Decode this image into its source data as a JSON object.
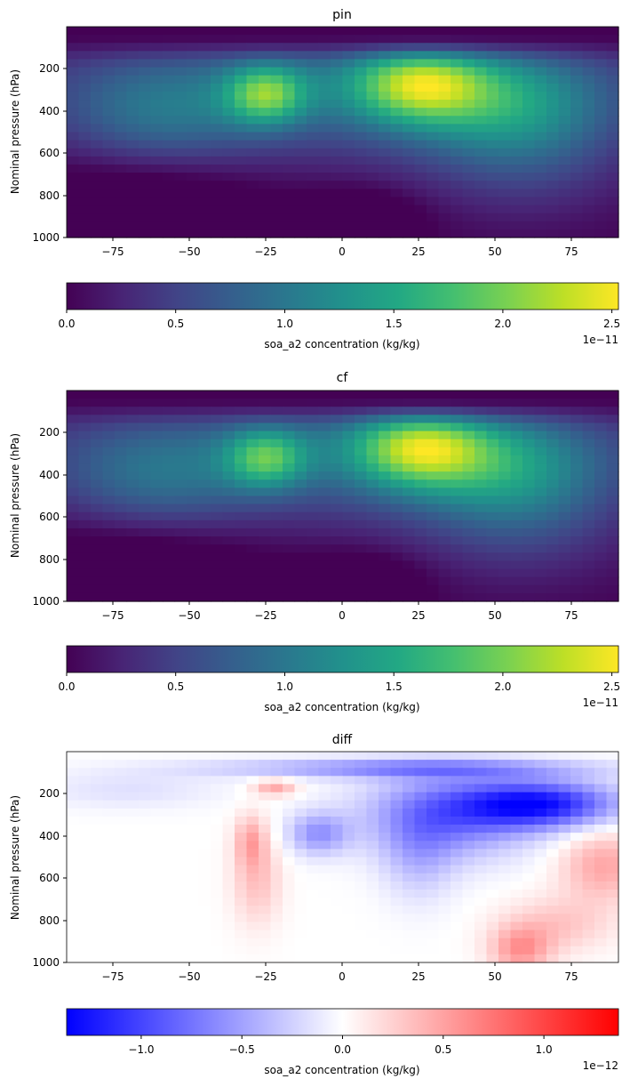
{
  "chart_data": [
    {
      "type": "heatmap",
      "title": "pin",
      "xlabel": "",
      "ylabel": "Nominal pressure (hPa)",
      "xlim": [
        -90,
        90
      ],
      "ylim": [
        1000,
        0
      ],
      "x_ticks": [
        "−75",
        "−50",
        "−25",
        "0",
        "25",
        "50",
        "75"
      ],
      "y_ticks": [
        "200",
        "400",
        "600",
        "800",
        "1000"
      ],
      "colormap": "viridis",
      "value_range": [
        0,
        2.5e-11
      ],
      "hotspots": [
        {
          "lat": -25,
          "p": 320,
          "value": 2.15e-11
        },
        {
          "lat": 25,
          "p": 250,
          "value": 2.5e-11
        }
      ],
      "colorbar": {
        "label": "soa_a2 concentration (kg/kg)",
        "ticks": [
          "0.0",
          "0.5",
          "1.0",
          "1.5",
          "2.0",
          "2.5"
        ],
        "offset": "1e−11",
        "range": [
          0,
          2.53
        ]
      }
    },
    {
      "type": "heatmap",
      "title": "cf",
      "xlabel": "",
      "ylabel": "Nominal pressure (hPa)",
      "xlim": [
        -90,
        90
      ],
      "ylim": [
        1000,
        0
      ],
      "x_ticks": [
        "−75",
        "−50",
        "−25",
        "0",
        "25",
        "50",
        "75"
      ],
      "y_ticks": [
        "200",
        "400",
        "600",
        "800",
        "1000"
      ],
      "colormap": "viridis",
      "value_range": [
        0,
        2.5e-11
      ],
      "hotspots": [
        {
          "lat": -25,
          "p": 320,
          "value": 2.1e-11
        },
        {
          "lat": 25,
          "p": 250,
          "value": 2.5e-11
        }
      ],
      "colorbar": {
        "label": "soa_a2 concentration (kg/kg)",
        "ticks": [
          "0.0",
          "0.5",
          "1.0",
          "1.5",
          "2.0",
          "2.5"
        ],
        "offset": "1e−11",
        "range": [
          0,
          2.53
        ]
      }
    },
    {
      "type": "heatmap",
      "title": "diff",
      "xlabel": "",
      "ylabel": "Nominal pressure (hPa)",
      "xlim": [
        -90,
        90
      ],
      "ylim": [
        1000,
        0
      ],
      "x_ticks": [
        "−75",
        "−50",
        "−25",
        "0",
        "25",
        "50",
        "75"
      ],
      "y_ticks": [
        "200",
        "400",
        "600",
        "800",
        "1000"
      ],
      "colormap": "bwr",
      "value_range": [
        -1.35e-12,
        1.35e-12
      ],
      "colorbar": {
        "label": "soa_a2 concentration (kg/kg)",
        "ticks": [
          "−1.0",
          "−0.5",
          "0.0",
          "0.5",
          "1.0"
        ],
        "offset": "1e−12",
        "range": [
          -1.37,
          1.37
        ]
      }
    }
  ]
}
